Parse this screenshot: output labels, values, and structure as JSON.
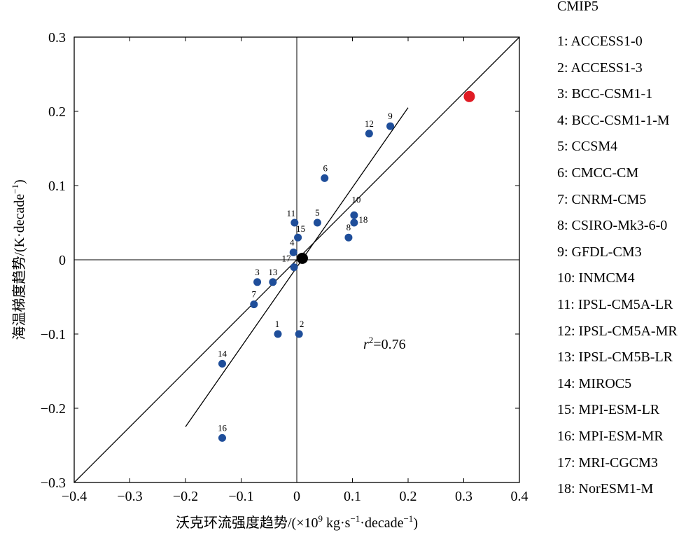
{
  "chart_data": {
    "type": "scatter",
    "xlabel_main": "沃克环流强度趋势/(×10",
    "xlabel_exp": "9",
    "xlabel_mid": " kg·s",
    "xlabel_exp2": "−1",
    "xlabel_end": "·decade",
    "xlabel_exp3": "−1",
    "xlabel_close": ")",
    "ylabel_main": "海温梯度趋势/(K·decade",
    "ylabel_exp": "−1",
    "ylabel_close": ")",
    "xlim": [
      -0.4,
      0.4
    ],
    "ylim": [
      -0.3,
      0.3
    ],
    "xticks": [
      "−0.4",
      "−0.3",
      "−0.2",
      "−0.1",
      "0",
      "0.1",
      "0.2",
      "0.3",
      "0.4"
    ],
    "xtick_values": [
      -0.4,
      -0.3,
      -0.2,
      -0.1,
      0,
      0.1,
      0.2,
      0.3,
      0.4
    ],
    "yticks": [
      "−0.3",
      "−0.2",
      "−0.1",
      "0",
      "0.1",
      "0.2",
      "0.3"
    ],
    "ytick_values": [
      -0.3,
      -0.2,
      -0.1,
      0,
      0.1,
      0.2,
      0.3
    ],
    "points": [
      {
        "label": "1",
        "x": -0.034,
        "y": -0.1
      },
      {
        "label": "2",
        "x": 0.004,
        "y": -0.1
      },
      {
        "label": "3",
        "x": -0.071,
        "y": -0.03
      },
      {
        "label": "4",
        "x": -0.006,
        "y": 0.01
      },
      {
        "label": "5",
        "x": 0.037,
        "y": 0.05
      },
      {
        "label": "6",
        "x": 0.05,
        "y": 0.11
      },
      {
        "label": "7",
        "x": -0.077,
        "y": -0.06
      },
      {
        "label": "8",
        "x": 0.093,
        "y": 0.03
      },
      {
        "label": "9",
        "x": 0.168,
        "y": 0.18
      },
      {
        "label": "10",
        "x": 0.103,
        "y": 0.06
      },
      {
        "label": "11",
        "x": -0.004,
        "y": 0.05
      },
      {
        "label": "12",
        "x": 0.13,
        "y": 0.17
      },
      {
        "label": "13",
        "x": -0.043,
        "y": -0.03
      },
      {
        "label": "14",
        "x": -0.134,
        "y": -0.14
      },
      {
        "label": "15",
        "x": 0.002,
        "y": 0.03
      },
      {
        "label": "16",
        "x": -0.134,
        "y": -0.24
      },
      {
        "label": "17",
        "x": -0.005,
        "y": -0.01
      },
      {
        "label": "18",
        "x": 0.103,
        "y": 0.05
      }
    ],
    "observation": {
      "x": 0.31,
      "y": 0.22
    },
    "ensemble_mean": {
      "x": 0.01,
      "y": 0.002
    },
    "lines": [
      {
        "x1": -0.4,
        "y1": -0.3,
        "x2": 0.4,
        "y2": 0.3
      },
      {
        "x1": -0.2,
        "y1": -0.225,
        "x2": 0.2,
        "y2": 0.205
      }
    ],
    "annotation_r": "r",
    "annotation_sup": "2",
    "annotation_val": "=0.76",
    "annotation_pos": {
      "x": 0.12,
      "y": -0.105
    },
    "colors": {
      "models": "#1f4e9a",
      "observation": "#e01b24",
      "mean": "#000000"
    }
  },
  "legend": {
    "title": "CMIP5",
    "items": [
      "1: ACCESS1-0",
      "2: ACCESS1-3",
      "3: BCC-CSM1-1",
      "4: BCC-CSM1-1-M",
      "5: CCSM4",
      "6: CMCC-CM",
      "7: CNRM-CM5",
      "8: CSIRO-Mk3-6-0",
      "9: GFDL-CM3",
      "10: INMCM4",
      "11: IPSL-CM5A-LR",
      "12: IPSL-CM5A-MR",
      "13: IPSL-CM5B-LR",
      "14: MIROC5",
      "15: MPI-ESM-LR",
      "16: MPI-ESM-MR",
      "17: MRI-CGCM3",
      "18: NorESM1-M"
    ]
  }
}
